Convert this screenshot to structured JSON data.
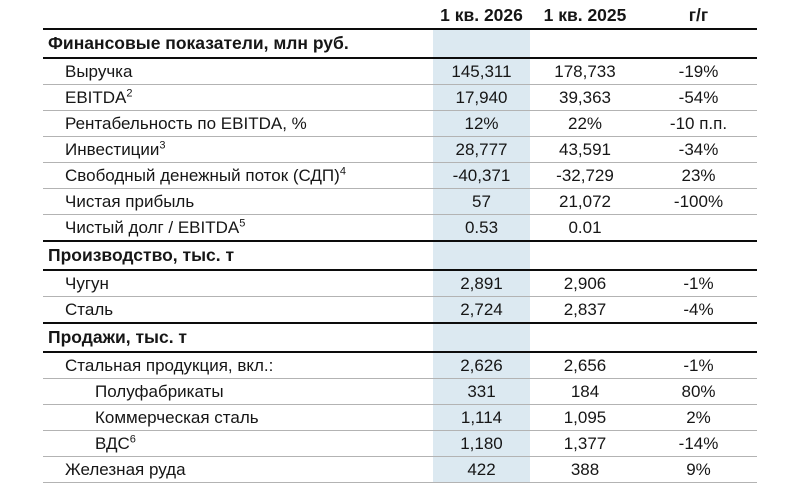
{
  "style": {
    "highlight_color": "#dce9f1",
    "rule_color": "#0c0c0c",
    "row_separator_color": "#b3b3b3"
  },
  "table": {
    "columns": [
      "",
      "1 кв. 2026",
      "1 кв. 2025",
      "г/г"
    ],
    "sections": [
      {
        "title": "Финансовые показатели, млн руб.",
        "rows": [
          {
            "label": "Выручка",
            "sup": "",
            "indent": 1,
            "v2026": "145,311",
            "v2025": "178,733",
            "yoy": "-19%"
          },
          {
            "label": "EBITDA",
            "sup": "2",
            "indent": 1,
            "v2026": "17,940",
            "v2025": "39,363",
            "yoy": "-54%"
          },
          {
            "label": "Рентабельность по EBITDA, %",
            "sup": "",
            "indent": 1,
            "v2026": "12%",
            "v2025": "22%",
            "yoy": "-10 п.п."
          },
          {
            "label": "Инвестиции",
            "sup": "3",
            "indent": 1,
            "v2026": "28,777",
            "v2025": "43,591",
            "yoy": "-34%"
          },
          {
            "label": "Свободный денежный поток (СДП)",
            "sup": "4",
            "indent": 1,
            "v2026": "-40,371",
            "v2025": "-32,729",
            "yoy": "23%"
          },
          {
            "label": "Чистая прибыль",
            "sup": "",
            "indent": 1,
            "v2026": "57",
            "v2025": "21,072",
            "yoy": "-100%"
          },
          {
            "label": "Чистый долг / EBITDA",
            "sup": "5",
            "indent": 1,
            "v2026": "0.53",
            "v2025": "0.01",
            "yoy": ""
          }
        ]
      },
      {
        "title": "Производство, тыс. т",
        "rows": [
          {
            "label": "Чугун",
            "sup": "",
            "indent": 1,
            "v2026": "2,891",
            "v2025": "2,906",
            "yoy": "-1%"
          },
          {
            "label": "Сталь",
            "sup": "",
            "indent": 1,
            "v2026": "2,724",
            "v2025": "2,837",
            "yoy": "-4%"
          }
        ]
      },
      {
        "title": "Продажи, тыс. т",
        "rows": [
          {
            "label": "Стальная продукция, вкл.:",
            "sup": "",
            "indent": 1,
            "v2026": "2,626",
            "v2025": "2,656",
            "yoy": "-1%"
          },
          {
            "label": "Полуфабрикаты",
            "sup": "",
            "indent": 2,
            "v2026": "331",
            "v2025": "184",
            "yoy": "80%"
          },
          {
            "label": "Коммерческая сталь",
            "sup": "",
            "indent": 2,
            "v2026": "1,114",
            "v2025": "1,095",
            "yoy": "2%"
          },
          {
            "label": "ВДС",
            "sup": "6",
            "indent": 2,
            "v2026": "1,180",
            "v2025": "1,377",
            "yoy": "-14%"
          },
          {
            "label": "Железная руда",
            "sup": "",
            "indent": 1,
            "v2026": "422",
            "v2025": "388",
            "yoy": "9%"
          }
        ]
      }
    ]
  }
}
